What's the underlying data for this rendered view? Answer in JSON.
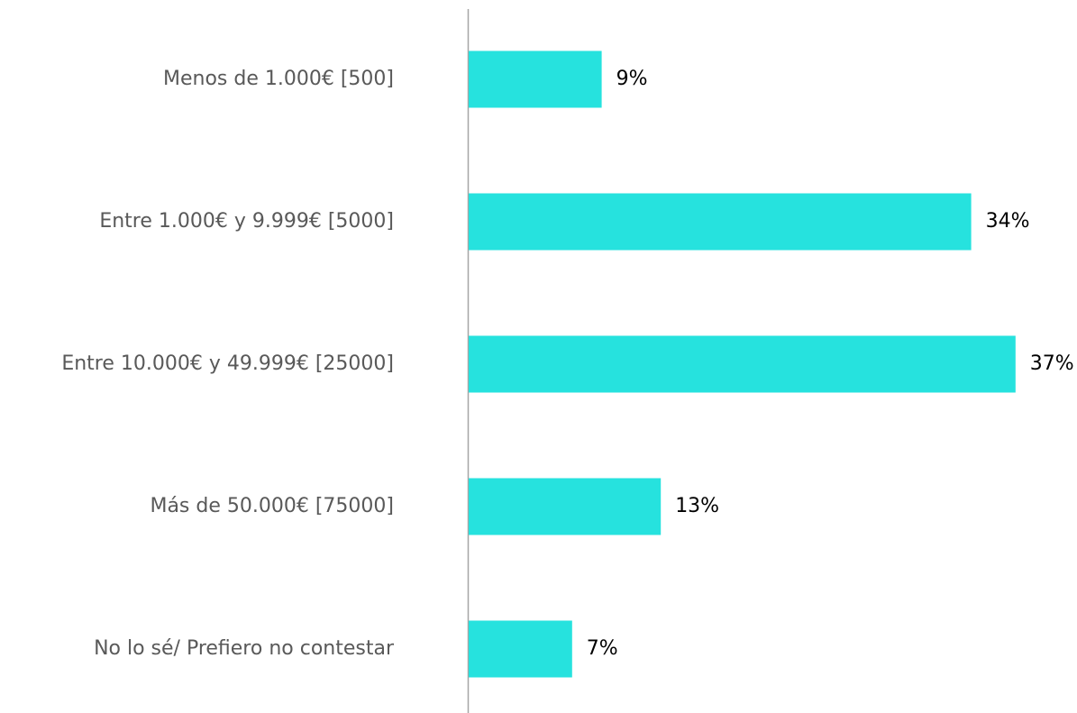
{
  "chart_data": {
    "type": "barh",
    "categories": [
      "Menos de 1.000€ [500]",
      "Entre 1.000€ y 9.999€ [5000]",
      "Entre 10.000€ y 49.999€ [25000]",
      "Más de 50.000€ [75000]",
      "No lo sé/ Prefiero no contestar"
    ],
    "values": [
      9,
      34,
      37,
      13,
      7
    ],
    "value_labels": [
      "9%",
      "34%",
      "37%",
      "13%",
      "7%"
    ],
    "color": "#26e2de"
  }
}
